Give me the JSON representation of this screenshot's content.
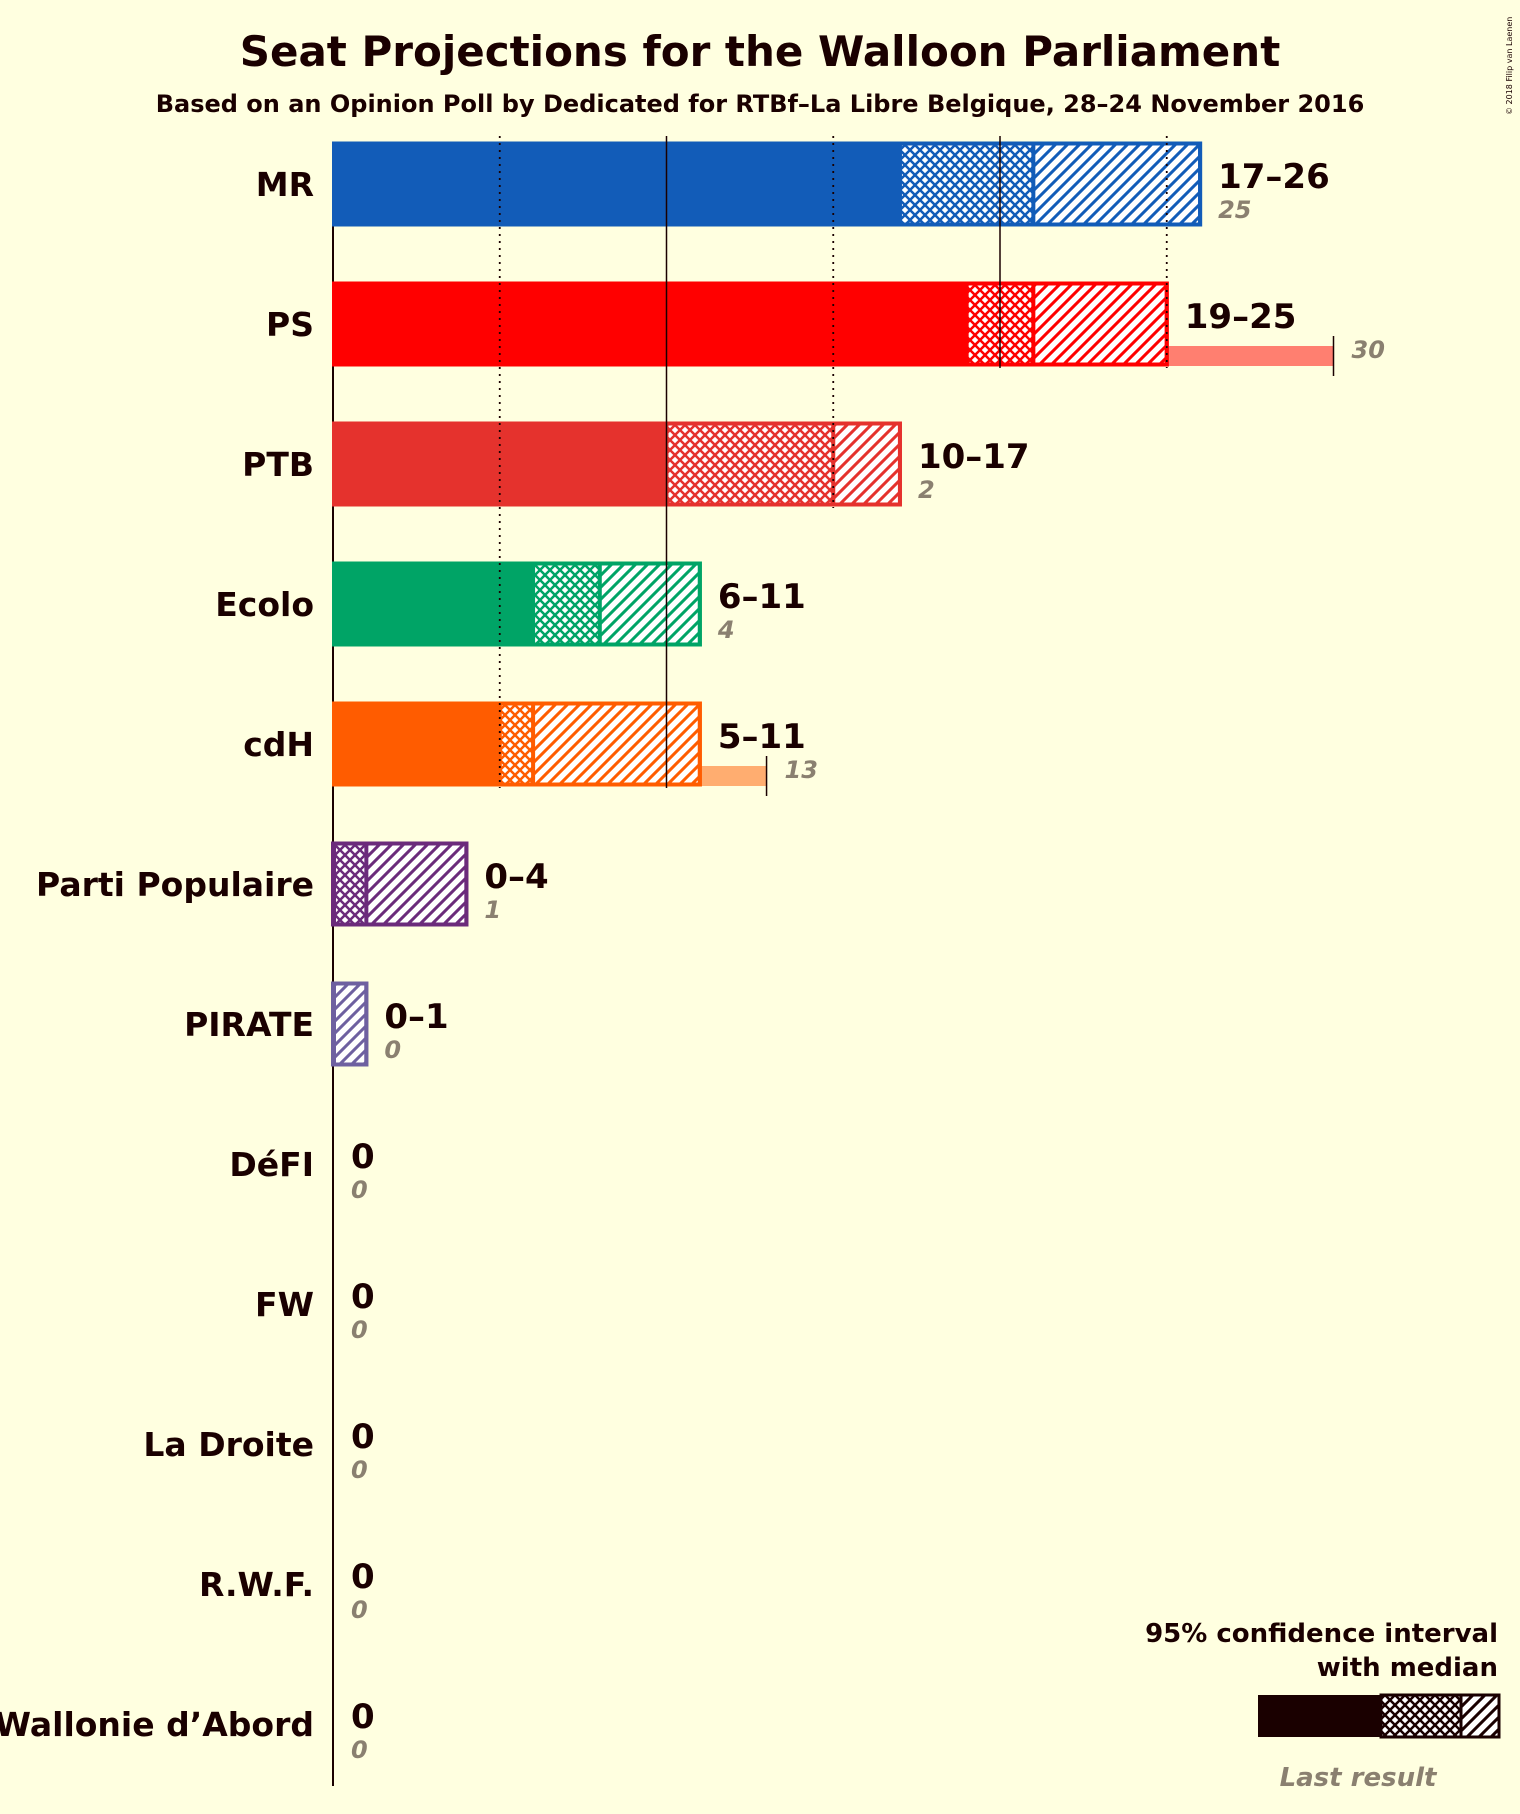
{
  "chart_data": {
    "type": "bar",
    "title": "Seat Projections for the Walloon Parliament",
    "subtitle": "Based on an Opinion Poll by Dedicated for RTBf–La Libre Belgique, 28–24 November 2016",
    "copyright": "© 2018 Filip van Laenen",
    "xlim": [
      0,
      30
    ],
    "gridlines": [
      5,
      10,
      15,
      20,
      25
    ],
    "series": [
      {
        "party": "MR",
        "color": "#125cb8",
        "low": 17,
        "median": 21,
        "high": 26,
        "range_label": "17–26",
        "last": 25,
        "last_label": "25"
      },
      {
        "party": "PS",
        "color": "#ff0000",
        "low": 19,
        "median": 21,
        "high": 25,
        "range_label": "19–25",
        "last": 30,
        "last_label": "30"
      },
      {
        "party": "PTB",
        "color": "#e5322d",
        "low": 10,
        "median": 15,
        "high": 17,
        "range_label": "10–17",
        "last": 2,
        "last_label": "2"
      },
      {
        "party": "Ecolo",
        "color": "#00a466",
        "low": 6,
        "median": 8,
        "high": 11,
        "range_label": "6–11",
        "last": 4,
        "last_label": "4"
      },
      {
        "party": "cdH",
        "color": "#ff5c00",
        "low": 5,
        "median": 6,
        "high": 11,
        "range_label": "5–11",
        "last": 13,
        "last_label": "13"
      },
      {
        "party": "Parti Populaire",
        "color": "#6b2b7b",
        "low": 0,
        "median": 1,
        "high": 4,
        "range_label": "0–4",
        "last": 1,
        "last_label": "1"
      },
      {
        "party": "PIRATE",
        "color": "#6e60a0",
        "low": 0,
        "median": 0,
        "high": 1,
        "range_label": "0–1",
        "last": 0,
        "last_label": "0"
      },
      {
        "party": "DéFI",
        "color": "#d4157e",
        "low": 0,
        "median": 0,
        "high": 0,
        "range_label": "0",
        "last": 0,
        "last_label": "0"
      },
      {
        "party": "FW",
        "color": "#555555",
        "low": 0,
        "median": 0,
        "high": 0,
        "range_label": "0",
        "last": 0,
        "last_label": "0"
      },
      {
        "party": "La Droite",
        "color": "#555555",
        "low": 0,
        "median": 0,
        "high": 0,
        "range_label": "0",
        "last": 0,
        "last_label": "0"
      },
      {
        "party": "R.W.F.",
        "color": "#555555",
        "low": 0,
        "median": 0,
        "high": 0,
        "range_label": "0",
        "last": 0,
        "last_label": "0"
      },
      {
        "party": "Wallonie d’Abord",
        "color": "#555555",
        "low": 0,
        "median": 0,
        "high": 0,
        "range_label": "0",
        "last": 0,
        "last_label": "0"
      }
    ],
    "legend": {
      "line1": "95% confidence interval",
      "line2": "with median",
      "last_result": "Last result",
      "placement": "bottom-right"
    }
  }
}
